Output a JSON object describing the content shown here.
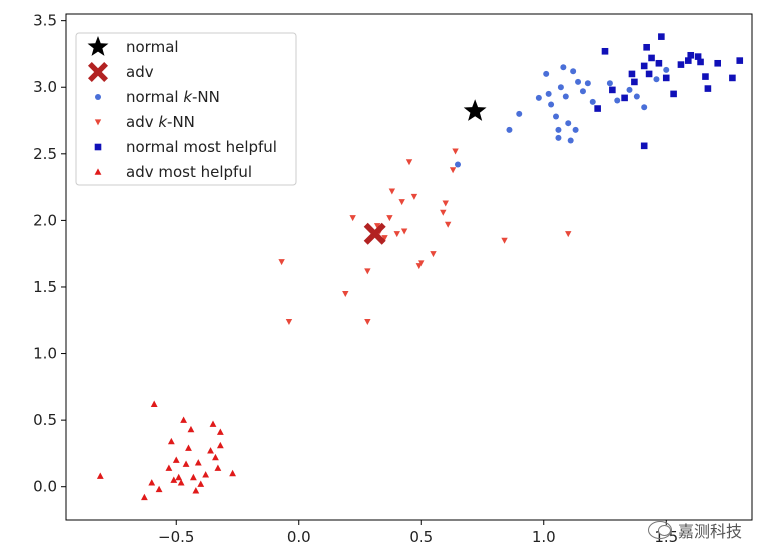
{
  "chart_data": {
    "type": "scatter",
    "title": "",
    "xlabel": "",
    "ylabel": "",
    "xlim": [
      -0.95,
      1.85
    ],
    "ylim": [
      -0.25,
      3.55
    ],
    "xticks": [
      -0.5,
      0.0,
      0.5,
      1.0,
      1.5
    ],
    "xtick_labels": [
      "−0.5",
      "0.0",
      "0.5",
      "1.0",
      "1.5"
    ],
    "yticks": [
      0.0,
      0.5,
      1.0,
      1.5,
      2.0,
      2.5,
      3.0,
      3.5
    ],
    "ytick_labels": [
      "0.0",
      "0.5",
      "1.0",
      "1.5",
      "2.0",
      "2.5",
      "3.0",
      "3.5"
    ],
    "grid": false,
    "legend_position": "top-left",
    "series": [
      {
        "name": "normal",
        "marker": "star",
        "color": "#000000",
        "points": [
          [
            0.72,
            2.82
          ]
        ]
      },
      {
        "name": "adv",
        "marker": "x",
        "color": "#b22222",
        "points": [
          [
            0.31,
            1.9
          ]
        ]
      },
      {
        "name": "normal k-NN",
        "marker": "circle",
        "color": "#4a6fd8",
        "points": [
          [
            0.65,
            2.42
          ],
          [
            0.86,
            2.68
          ],
          [
            0.9,
            2.8
          ],
          [
            0.98,
            2.92
          ],
          [
            1.01,
            3.1
          ],
          [
            1.02,
            2.95
          ],
          [
            1.03,
            2.87
          ],
          [
            1.05,
            2.78
          ],
          [
            1.06,
            2.68
          ],
          [
            1.06,
            2.62
          ],
          [
            1.07,
            3.0
          ],
          [
            1.08,
            3.15
          ],
          [
            1.09,
            2.93
          ],
          [
            1.1,
            2.73
          ],
          [
            1.11,
            2.6
          ],
          [
            1.12,
            3.12
          ],
          [
            1.13,
            2.68
          ],
          [
            1.14,
            3.04
          ],
          [
            1.16,
            2.97
          ],
          [
            1.18,
            3.03
          ],
          [
            1.2,
            2.89
          ],
          [
            1.27,
            3.03
          ],
          [
            1.3,
            2.9
          ],
          [
            1.35,
            2.98
          ],
          [
            1.38,
            2.93
          ],
          [
            1.41,
            2.85
          ],
          [
            1.46,
            3.06
          ],
          [
            1.5,
            3.13
          ]
        ]
      },
      {
        "name": "adv k-NN",
        "marker": "triangle-down",
        "color": "#e8483a",
        "points": [
          [
            -0.07,
            1.69
          ],
          [
            -0.04,
            1.24
          ],
          [
            0.19,
            1.45
          ],
          [
            0.22,
            2.02
          ],
          [
            0.28,
            1.62
          ],
          [
            0.28,
            1.24
          ],
          [
            0.32,
            1.96
          ],
          [
            0.33,
            1.92
          ],
          [
            0.35,
            1.87
          ],
          [
            0.37,
            2.02
          ],
          [
            0.38,
            2.22
          ],
          [
            0.4,
            1.9
          ],
          [
            0.42,
            2.14
          ],
          [
            0.43,
            1.92
          ],
          [
            0.45,
            2.44
          ],
          [
            0.47,
            2.18
          ],
          [
            0.49,
            1.66
          ],
          [
            0.5,
            1.68
          ],
          [
            0.55,
            1.75
          ],
          [
            0.59,
            2.06
          ],
          [
            0.6,
            2.13
          ],
          [
            0.61,
            1.97
          ],
          [
            0.63,
            2.38
          ],
          [
            0.64,
            2.52
          ],
          [
            0.84,
            1.85
          ],
          [
            1.1,
            1.9
          ]
        ]
      },
      {
        "name": "normal most helpful",
        "marker": "square",
        "color": "#1010b8",
        "points": [
          [
            1.22,
            2.84
          ],
          [
            1.25,
            3.27
          ],
          [
            1.28,
            2.98
          ],
          [
            1.33,
            2.92
          ],
          [
            1.36,
            3.1
          ],
          [
            1.37,
            3.04
          ],
          [
            1.41,
            2.56
          ],
          [
            1.41,
            3.16
          ],
          [
            1.42,
            3.3
          ],
          [
            1.43,
            3.1
          ],
          [
            1.44,
            3.22
          ],
          [
            1.47,
            3.18
          ],
          [
            1.48,
            3.38
          ],
          [
            1.5,
            3.07
          ],
          [
            1.53,
            2.95
          ],
          [
            1.56,
            3.17
          ],
          [
            1.59,
            3.2
          ],
          [
            1.6,
            3.24
          ],
          [
            1.63,
            3.23
          ],
          [
            1.64,
            3.19
          ],
          [
            1.66,
            3.08
          ],
          [
            1.67,
            2.99
          ],
          [
            1.71,
            3.18
          ],
          [
            1.77,
            3.07
          ],
          [
            1.8,
            3.2
          ]
        ]
      },
      {
        "name": "adv most helpful",
        "marker": "triangle-up",
        "color": "#e01a1a",
        "points": [
          [
            -0.81,
            0.08
          ],
          [
            -0.63,
            -0.08
          ],
          [
            -0.6,
            0.03
          ],
          [
            -0.59,
            0.62
          ],
          [
            -0.57,
            -0.02
          ],
          [
            -0.53,
            0.14
          ],
          [
            -0.52,
            0.34
          ],
          [
            -0.51,
            0.05
          ],
          [
            -0.5,
            0.2
          ],
          [
            -0.49,
            0.07
          ],
          [
            -0.48,
            0.03
          ],
          [
            -0.47,
            0.5
          ],
          [
            -0.46,
            0.17
          ],
          [
            -0.45,
            0.29
          ],
          [
            -0.44,
            0.43
          ],
          [
            -0.43,
            0.07
          ],
          [
            -0.42,
            -0.03
          ],
          [
            -0.41,
            0.18
          ],
          [
            -0.4,
            0.02
          ],
          [
            -0.38,
            0.09
          ],
          [
            -0.36,
            0.27
          ],
          [
            -0.35,
            0.47
          ],
          [
            -0.34,
            0.22
          ],
          [
            -0.33,
            0.14
          ],
          [
            -0.32,
            0.31
          ],
          [
            -0.32,
            0.41
          ],
          [
            -0.27,
            0.1
          ]
        ]
      }
    ]
  },
  "legend": {
    "items": [
      {
        "pre": "normal",
        "ital": "",
        "post": ""
      },
      {
        "pre": "adv",
        "ital": "",
        "post": ""
      },
      {
        "pre": "normal ",
        "ital": "k",
        "post": "-NN"
      },
      {
        "pre": "adv ",
        "ital": "k",
        "post": "-NN"
      },
      {
        "pre": "normal most helpful",
        "ital": "",
        "post": ""
      },
      {
        "pre": "adv most helpful",
        "ital": "",
        "post": ""
      }
    ]
  },
  "watermark": {
    "icon": "wechat-icon",
    "text": "嘉测科技"
  }
}
